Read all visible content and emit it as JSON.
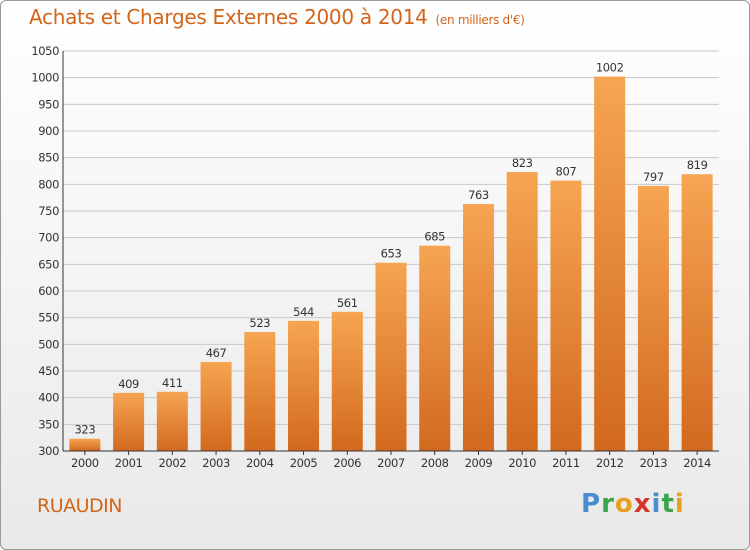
{
  "header": {
    "title": "Achats et Charges Externes 2000 à 2014",
    "subtitle": "(en milliers d'€)"
  },
  "footer": {
    "commune": "RUAUDIN",
    "logo_text": "Proxiti"
  },
  "colors": {
    "accent": "#d2651a",
    "bar_top": "#f6a552",
    "bar_bottom": "#d2691e",
    "grid": "#c8c8c8"
  },
  "chart_data": {
    "type": "bar",
    "categories": [
      "2000",
      "2001",
      "2002",
      "2003",
      "2004",
      "2005",
      "2006",
      "2007",
      "2008",
      "2009",
      "2010",
      "2011",
      "2012",
      "2013",
      "2014"
    ],
    "values": [
      323,
      409,
      411,
      467,
      523,
      544,
      561,
      653,
      685,
      763,
      823,
      807,
      1002,
      797,
      819
    ],
    "data_labels": [
      "323",
      "409",
      "411",
      "467",
      "523",
      "544",
      "561",
      "653",
      "685",
      "763",
      "823",
      "807",
      "1002",
      "797",
      "819"
    ],
    "ylim": [
      300,
      1050
    ],
    "yticks": [
      300,
      350,
      400,
      450,
      500,
      550,
      600,
      650,
      700,
      750,
      800,
      850,
      900,
      950,
      1000,
      1050
    ],
    "ytick_labels": [
      "300",
      "350",
      "400",
      "450",
      "500",
      "550",
      "600",
      "650",
      "700",
      "750",
      "800",
      "850",
      "900",
      "950",
      "1000",
      "1050"
    ],
    "grid": true
  }
}
